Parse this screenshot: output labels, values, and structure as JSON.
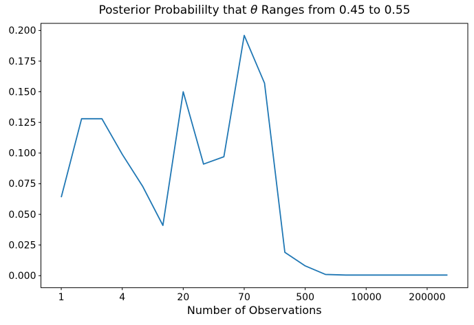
{
  "chart": {
    "title_prefix": "Posterior Probabililty that ",
    "title_theta": "θ",
    "title_suffix": " Ranges from 0.45 to 0.55"
  },
  "chart_data": {
    "type": "line",
    "title": "Posterior Probabililty that θ Ranges from 0.45 to 0.55",
    "xlabel": "Number of Observations",
    "ylabel": "",
    "x_axis_note": "points plotted at evenly spaced index positions; ticks label observation counts",
    "x_index": [
      0,
      1,
      2,
      3,
      4,
      5,
      6,
      7,
      8,
      9,
      10,
      11,
      12,
      13,
      14,
      15,
      16,
      17,
      18,
      19
    ],
    "values": [
      0.064,
      0.128,
      0.128,
      0.099,
      0.073,
      0.041,
      0.15,
      0.091,
      0.097,
      0.196,
      0.157,
      0.019,
      0.008,
      0.001,
      0.0005,
      0.0005,
      0.0005,
      0.0005,
      0.0005,
      0.0005
    ],
    "xticks": {
      "positions": [
        0,
        3,
        6,
        9,
        12,
        15,
        18
      ],
      "labels": [
        "1",
        "4",
        "20",
        "70",
        "500",
        "10000",
        "200000"
      ]
    },
    "yticks": {
      "values": [
        0.0,
        0.025,
        0.05,
        0.075,
        0.1,
        0.125,
        0.15,
        0.175,
        0.2
      ],
      "labels": [
        "0.000",
        "0.025",
        "0.050",
        "0.075",
        "0.100",
        "0.125",
        "0.150",
        "0.175",
        "0.200"
      ]
    },
    "xlim": [
      -1,
      20
    ],
    "ylim": [
      -0.0098,
      0.2058
    ],
    "grid": false,
    "legend": null,
    "colors": {
      "line": "#1f77b4",
      "spine": "#000000",
      "background": "#ffffff"
    }
  }
}
